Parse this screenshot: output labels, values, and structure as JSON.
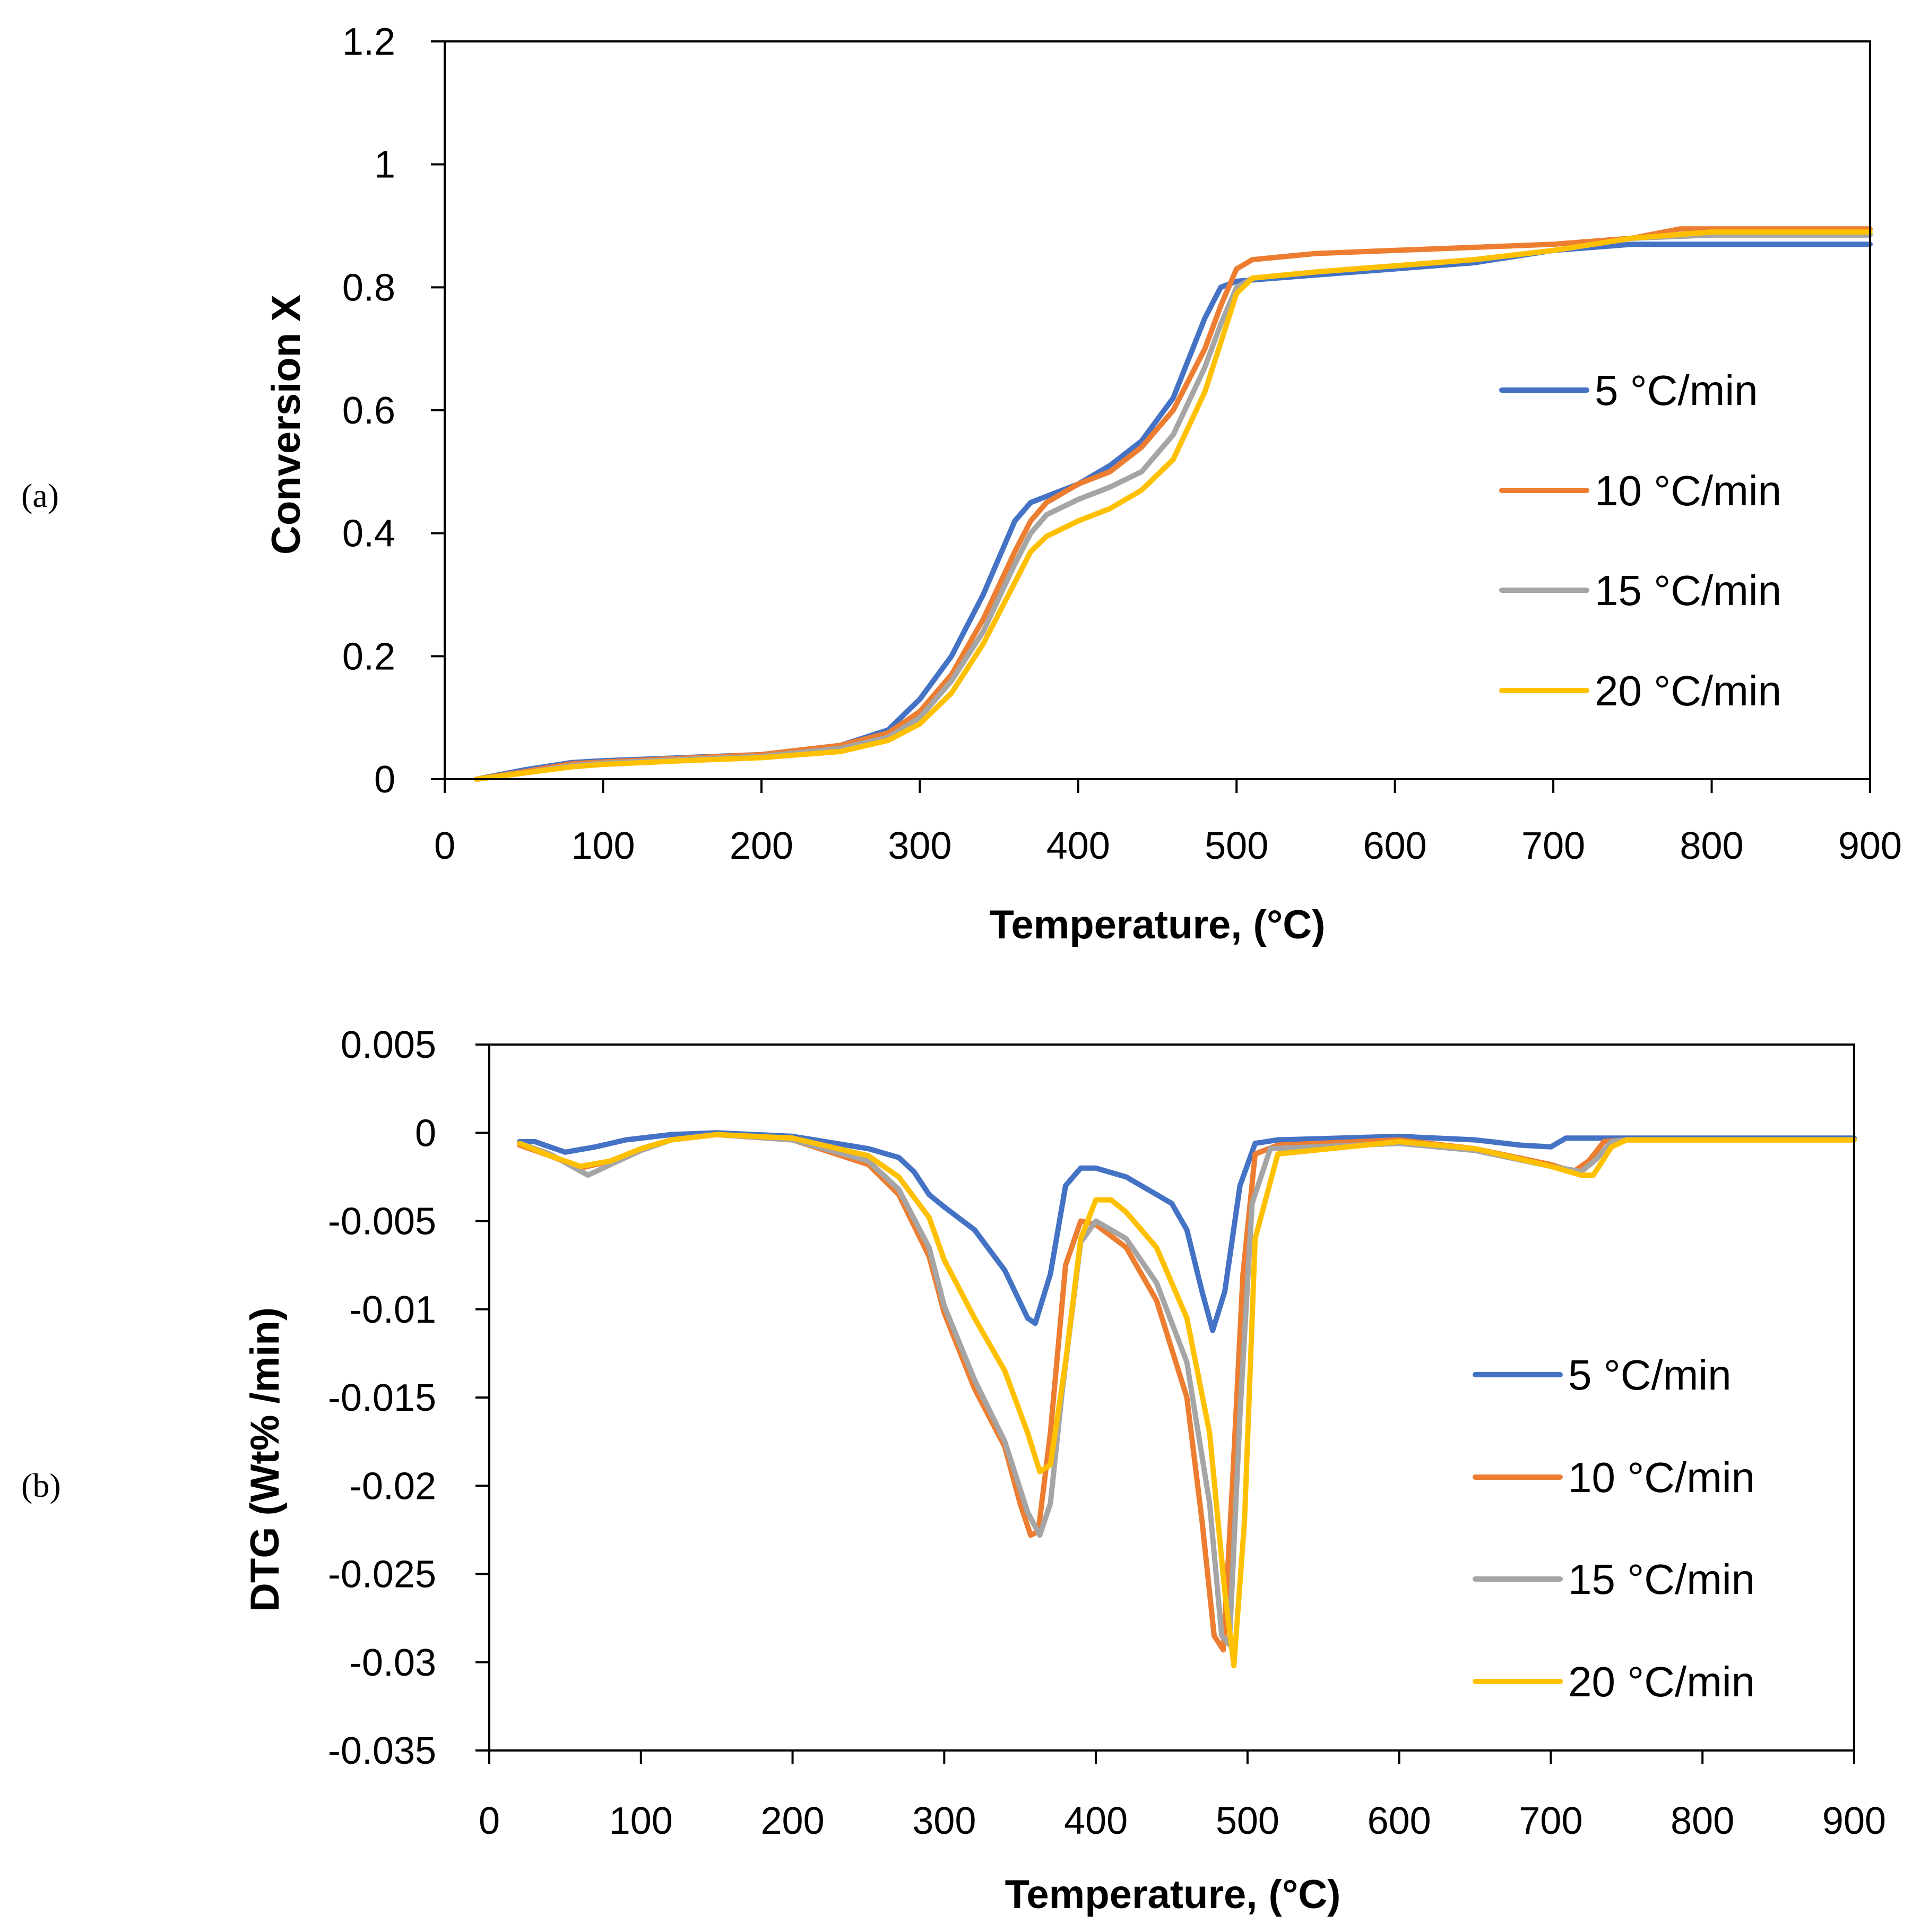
{
  "chart_data": [
    {
      "id": "a",
      "type": "line",
      "panel_label": "(a)",
      "title": "",
      "xlabel": "Temperature, (°C)",
      "ylabel": "Conversion X",
      "xlim": [
        0,
        900
      ],
      "ylim": [
        0,
        1.2
      ],
      "xticks": [
        0,
        100,
        200,
        300,
        400,
        500,
        600,
        700,
        800,
        900
      ],
      "yticks": [
        0,
        0.2,
        0.4,
        0.6,
        0.8,
        1,
        1.2
      ],
      "ytick_labels": [
        "0",
        "0.2",
        "0.4",
        "0.6",
        "0.8",
        "1",
        "1.2"
      ],
      "grid": false,
      "legend_position": "right",
      "series": [
        {
          "name": "5 °C/min",
          "color": "#4472C4",
          "x": [
            20,
            50,
            80,
            100,
            150,
            200,
            250,
            280,
            300,
            320,
            340,
            360,
            370,
            380,
            400,
            420,
            440,
            460,
            480,
            490,
            500,
            550,
            600,
            650,
            700,
            750,
            800,
            900
          ],
          "y": [
            0,
            0.015,
            0.027,
            0.03,
            0.035,
            0.04,
            0.055,
            0.08,
            0.13,
            0.2,
            0.3,
            0.42,
            0.45,
            0.46,
            0.48,
            0.51,
            0.55,
            0.62,
            0.75,
            0.8,
            0.81,
            0.82,
            0.83,
            0.84,
            0.86,
            0.87,
            0.87,
            0.87
          ]
        },
        {
          "name": "10 °C/min",
          "color": "#ED7D31",
          "x": [
            20,
            50,
            80,
            100,
            150,
            200,
            250,
            280,
            300,
            320,
            340,
            360,
            370,
            380,
            400,
            420,
            440,
            460,
            480,
            490,
            500,
            510,
            550,
            600,
            650,
            700,
            750,
            780,
            800,
            900
          ],
          "y": [
            0,
            0.012,
            0.025,
            0.028,
            0.034,
            0.04,
            0.055,
            0.075,
            0.11,
            0.17,
            0.26,
            0.37,
            0.42,
            0.45,
            0.48,
            0.5,
            0.54,
            0.6,
            0.7,
            0.77,
            0.83,
            0.845,
            0.855,
            0.86,
            0.865,
            0.87,
            0.88,
            0.895,
            0.895,
            0.895
          ]
        },
        {
          "name": "15 °C/min",
          "color": "#A5A5A5",
          "x": [
            20,
            50,
            80,
            100,
            150,
            200,
            250,
            280,
            300,
            320,
            340,
            360,
            370,
            380,
            400,
            420,
            440,
            460,
            480,
            490,
            500,
            510,
            550,
            600,
            650,
            700,
            750,
            800,
            900
          ],
          "y": [
            0,
            0.01,
            0.022,
            0.026,
            0.032,
            0.037,
            0.05,
            0.068,
            0.1,
            0.16,
            0.24,
            0.35,
            0.4,
            0.43,
            0.455,
            0.475,
            0.5,
            0.56,
            0.67,
            0.74,
            0.8,
            0.815,
            0.825,
            0.835,
            0.845,
            0.86,
            0.88,
            0.885,
            0.885
          ]
        },
        {
          "name": "20 °C/min",
          "color": "#FFC000",
          "x": [
            20,
            50,
            80,
            100,
            150,
            200,
            250,
            280,
            300,
            320,
            340,
            360,
            370,
            380,
            400,
            420,
            440,
            460,
            480,
            490,
            500,
            510,
            550,
            600,
            650,
            700,
            750,
            800,
            900
          ],
          "y": [
            0,
            0.01,
            0.02,
            0.024,
            0.03,
            0.035,
            0.045,
            0.063,
            0.09,
            0.14,
            0.22,
            0.32,
            0.37,
            0.395,
            0.42,
            0.44,
            0.47,
            0.52,
            0.63,
            0.71,
            0.79,
            0.815,
            0.825,
            0.835,
            0.845,
            0.86,
            0.88,
            0.89,
            0.89
          ]
        }
      ]
    },
    {
      "id": "b",
      "type": "line",
      "panel_label": "(b)",
      "title": "",
      "xlabel": "Temperature, (°C)",
      "ylabel": "DTG (Wt% /min)",
      "xlim": [
        0,
        900
      ],
      "ylim": [
        -0.035,
        0.005
      ],
      "xticks": [
        0,
        100,
        200,
        300,
        400,
        500,
        600,
        700,
        800,
        900
      ],
      "yticks": [
        0.005,
        0,
        -0.005,
        -0.01,
        -0.015,
        -0.02,
        -0.025,
        -0.03,
        -0.035
      ],
      "ytick_labels": [
        "0.005",
        "0",
        "-0.005",
        "-0.01",
        "-0.015",
        "-0.02",
        "-0.025",
        "-0.03",
        "-0.035"
      ],
      "grid": false,
      "legend_position": "bottom-right",
      "series": [
        {
          "name": "5 °C/min",
          "color": "#4472C4",
          "x": [
            20,
            30,
            50,
            70,
            90,
            120,
            150,
            200,
            250,
            270,
            280,
            290,
            300,
            320,
            340,
            355,
            360,
            370,
            380,
            390,
            400,
            420,
            440,
            450,
            460,
            470,
            477,
            485,
            495,
            505,
            520,
            600,
            650,
            680,
            700,
            710,
            750,
            800,
            900
          ],
          "y": [
            -0.0005,
            -0.0005,
            -0.0011,
            -0.0008,
            -0.0004,
            -0.0001,
            0,
            -0.0002,
            -0.0009,
            -0.0014,
            -0.0022,
            -0.0035,
            -0.0042,
            -0.0055,
            -0.0078,
            -0.0105,
            -0.0108,
            -0.008,
            -0.003,
            -0.002,
            -0.002,
            -0.0025,
            -0.0035,
            -0.004,
            -0.0055,
            -0.009,
            -0.0112,
            -0.009,
            -0.003,
            -0.0006,
            -0.0004,
            -0.0002,
            -0.0004,
            -0.0007,
            -0.0008,
            -0.0003,
            -0.0003,
            -0.0003,
            -0.0003
          ]
        },
        {
          "name": "10 °C/min",
          "color": "#ED7D31",
          "x": [
            20,
            40,
            60,
            80,
            100,
            120,
            150,
            200,
            250,
            270,
            290,
            300,
            320,
            340,
            350,
            357,
            362,
            370,
            380,
            390,
            400,
            420,
            440,
            460,
            470,
            478,
            484,
            490,
            497,
            505,
            520,
            600,
            650,
            700,
            715,
            725,
            735,
            750,
            800,
            900
          ],
          "y": [
            -0.0007,
            -0.0013,
            -0.002,
            -0.0016,
            -0.0009,
            -0.0004,
            -0.0001,
            -0.0004,
            -0.0018,
            -0.0035,
            -0.007,
            -0.0102,
            -0.0145,
            -0.0178,
            -0.021,
            -0.0228,
            -0.0226,
            -0.017,
            -0.0075,
            -0.005,
            -0.0052,
            -0.0065,
            -0.0095,
            -0.015,
            -0.022,
            -0.0285,
            -0.0293,
            -0.02,
            -0.008,
            -0.0012,
            -0.0007,
            -0.0004,
            -0.0009,
            -0.0018,
            -0.0022,
            -0.0016,
            -0.0005,
            -0.0004,
            -0.0004,
            -0.0004
          ]
        },
        {
          "name": "15 °C/min",
          "color": "#A5A5A5",
          "x": [
            20,
            40,
            65,
            80,
            100,
            120,
            150,
            200,
            250,
            270,
            290,
            300,
            320,
            340,
            355,
            363,
            370,
            378,
            390,
            400,
            420,
            440,
            460,
            475,
            483,
            488,
            495,
            503,
            515,
            600,
            650,
            700,
            720,
            730,
            740,
            750,
            800,
            900
          ],
          "y": [
            -0.0006,
            -0.0012,
            -0.0024,
            -0.0018,
            -0.001,
            -0.0004,
            -0.0001,
            -0.0004,
            -0.0016,
            -0.0032,
            -0.0065,
            -0.0098,
            -0.014,
            -0.0175,
            -0.0215,
            -0.0228,
            -0.021,
            -0.0145,
            -0.0062,
            -0.005,
            -0.006,
            -0.0085,
            -0.013,
            -0.021,
            -0.0285,
            -0.029,
            -0.016,
            -0.004,
            -0.0009,
            -0.0006,
            -0.001,
            -0.0019,
            -0.0022,
            -0.0015,
            -0.0005,
            -0.0004,
            -0.0004,
            -0.0004
          ]
        },
        {
          "name": "20 °C/min",
          "color": "#FFC000",
          "x": [
            20,
            40,
            60,
            80,
            100,
            120,
            150,
            200,
            250,
            270,
            290,
            300,
            320,
            340,
            355,
            363,
            370,
            380,
            390,
            400,
            410,
            420,
            440,
            460,
            475,
            485,
            491,
            498,
            505,
            520,
            600,
            650,
            700,
            720,
            728,
            740,
            750,
            800,
            900
          ],
          "y": [
            -0.0006,
            -0.0013,
            -0.0019,
            -0.0016,
            -0.0009,
            -0.0004,
            -0.0001,
            -0.0003,
            -0.0013,
            -0.0025,
            -0.0048,
            -0.0072,
            -0.0105,
            -0.0135,
            -0.017,
            -0.0192,
            -0.0188,
            -0.013,
            -0.006,
            -0.0038,
            -0.0038,
            -0.0045,
            -0.0065,
            -0.0105,
            -0.017,
            -0.026,
            -0.0302,
            -0.022,
            -0.006,
            -0.0012,
            -0.0005,
            -0.0009,
            -0.0019,
            -0.0024,
            -0.0024,
            -0.0008,
            -0.0004,
            -0.0004,
            -0.0004
          ]
        }
      ]
    }
  ]
}
